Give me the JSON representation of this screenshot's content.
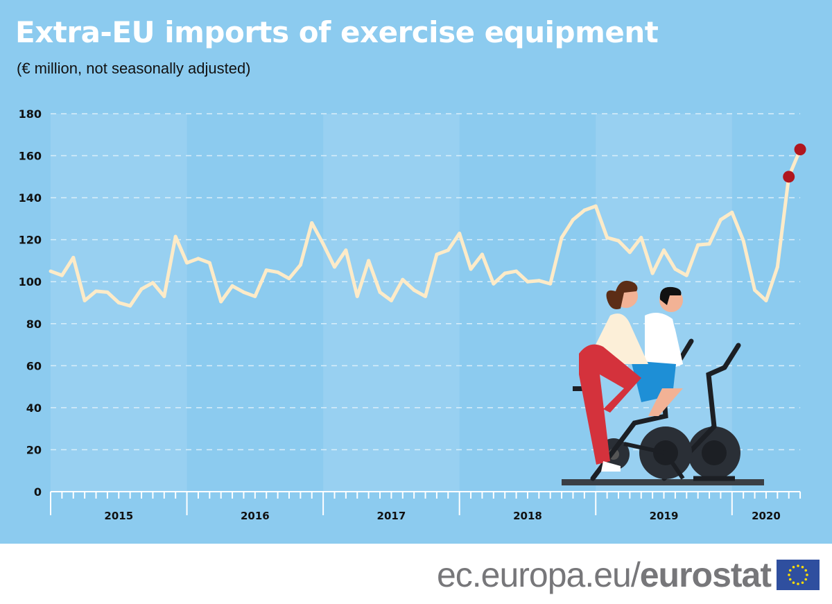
{
  "header": {
    "title": "Extra-EU imports of exercise equipment",
    "subtitle": "(€ million, not seasonally adjusted)"
  },
  "footer": {
    "url_prefix": "ec.europa.eu/",
    "brand": "eurostat",
    "logo": "eu-flag"
  },
  "colors": {
    "background": "#8ccbef",
    "band_light": "#98d0f1",
    "line": "#fdebc8",
    "highlight": "#b0161e",
    "footer_text": "#77777a"
  },
  "chart_data": {
    "type": "line",
    "title": "Extra-EU imports of exercise equipment",
    "subtitle": "(€ million, not seasonally adjusted)",
    "xlabel": "",
    "ylabel": "",
    "ylim": [
      0,
      180
    ],
    "yticks": [
      "0",
      "20",
      "40",
      "60",
      "80",
      "100",
      "120",
      "140",
      "160",
      "180"
    ],
    "years": [
      "2015",
      "2016",
      "2017",
      "2018",
      "2019",
      "2020"
    ],
    "x_start": "2015-01",
    "x_end": "2020-07",
    "grid": "horizontal dashed",
    "highlighted_points": [
      "2020-06",
      "2020-07"
    ],
    "series": [
      {
        "values": [
          105,
          103,
          111.5,
          91,
          95.5,
          95,
          90,
          88.5,
          96.5,
          99.5,
          93,
          121.5,
          109,
          111,
          109,
          90.5,
          98,
          95,
          93,
          105.5,
          104.5,
          101.5,
          108,
          128,
          118,
          107,
          115,
          93,
          110,
          95,
          91,
          101,
          96,
          93,
          113,
          115,
          123,
          106,
          113,
          99,
          104,
          105,
          100,
          100.5,
          99,
          121,
          129.5,
          134,
          136,
          121,
          119.5,
          114,
          121,
          104,
          115,
          106,
          103,
          117.5,
          118,
          129.5,
          133,
          119.5,
          96,
          91,
          107,
          150,
          163
        ]
      }
    ]
  }
}
